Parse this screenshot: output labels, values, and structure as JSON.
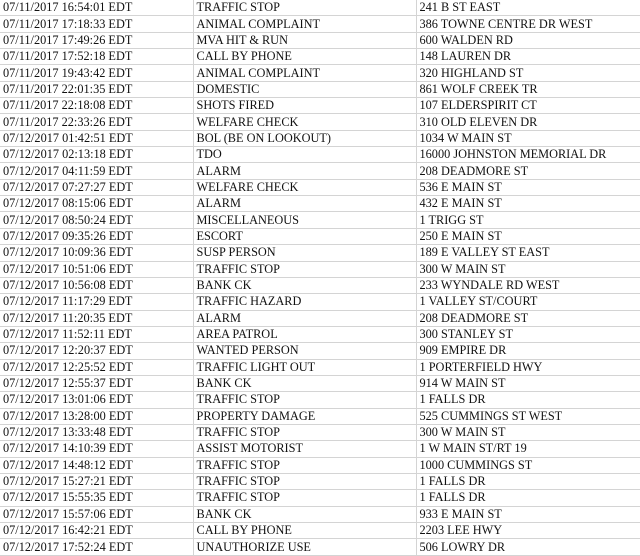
{
  "rows": [
    [
      "07/11/2017 16:54:01 EDT",
      "TRAFFIC STOP",
      "241 B ST EAST"
    ],
    [
      "07/11/2017 17:18:33 EDT",
      "ANIMAL COMPLAINT",
      "386 TOWNE CENTRE DR WEST"
    ],
    [
      "07/11/2017 17:49:26 EDT",
      "MVA HIT & RUN",
      "600 WALDEN RD"
    ],
    [
      "07/11/2017 17:52:18 EDT",
      "CALL BY PHONE",
      "148 LAUREN DR"
    ],
    [
      "07/11/2017 19:43:42 EDT",
      "ANIMAL COMPLAINT",
      "320 HIGHLAND ST"
    ],
    [
      "07/11/2017 22:01:35 EDT",
      "DOMESTIC",
      "861 WOLF CREEK TR"
    ],
    [
      "07/11/2017 22:18:08 EDT",
      "SHOTS FIRED",
      "107 ELDERSPIRIT CT"
    ],
    [
      "07/11/2017 22:33:26 EDT",
      "WELFARE CHECK",
      "310 OLD ELEVEN DR"
    ],
    [
      "07/12/2017 01:42:51 EDT",
      "BOL (BE ON LOOKOUT)",
      "1034 W MAIN ST"
    ],
    [
      "07/12/2017 02:13:18 EDT",
      "TDO",
      "16000 JOHNSTON MEMORIAL DR"
    ],
    [
      "07/12/2017 04:11:59 EDT",
      "ALARM",
      "208 DEADMORE ST"
    ],
    [
      "07/12/2017 07:27:27 EDT",
      "WELFARE CHECK",
      "536 E MAIN ST"
    ],
    [
      "07/12/2017 08:15:06 EDT",
      "ALARM",
      "432 E MAIN ST"
    ],
    [
      "07/12/2017 08:50:24 EDT",
      "MISCELLANEOUS",
      "1 TRIGG ST"
    ],
    [
      "07/12/2017 09:35:26 EDT",
      "ESCORT",
      "250 E MAIN ST"
    ],
    [
      "07/12/2017 10:09:36 EDT",
      "SUSP PERSON",
      "189 E VALLEY ST EAST"
    ],
    [
      "07/12/2017 10:51:06 EDT",
      "TRAFFIC STOP",
      "300 W MAIN ST"
    ],
    [
      "07/12/2017 10:56:08 EDT",
      "BANK CK",
      "233 WYNDALE RD WEST"
    ],
    [
      "07/12/2017 11:17:29 EDT",
      "TRAFFIC HAZARD",
      "1 VALLEY ST/COURT"
    ],
    [
      "07/12/2017 11:20:35 EDT",
      "ALARM",
      "208 DEADMORE ST"
    ],
    [
      "07/12/2017 11:52:11 EDT",
      "AREA PATROL",
      "300 STANLEY ST"
    ],
    [
      "07/12/2017 12:20:37 EDT",
      "WANTED PERSON",
      "909 EMPIRE DR"
    ],
    [
      "07/12/2017 12:25:52 EDT",
      "TRAFFIC LIGHT OUT",
      "1 PORTERFIELD HWY"
    ],
    [
      "07/12/2017 12:55:37 EDT",
      "BANK CK",
      "914 W MAIN ST"
    ],
    [
      "07/12/2017 13:01:06 EDT",
      "TRAFFIC STOP",
      "1 FALLS DR"
    ],
    [
      "07/12/2017 13:28:00 EDT",
      "PROPERTY DAMAGE",
      "525 CUMMINGS ST WEST"
    ],
    [
      "07/12/2017 13:33:48 EDT",
      "TRAFFIC STOP",
      "300 W MAIN ST"
    ],
    [
      "07/12/2017 14:10:39 EDT",
      "ASSIST MOTORIST",
      "1 W MAIN ST/RT 19"
    ],
    [
      "07/12/2017 14:48:12 EDT",
      "TRAFFIC STOP",
      "1000 CUMMINGS ST"
    ],
    [
      "07/12/2017 15:27:21 EDT",
      "TRAFFIC STOP",
      "1 FALLS DR"
    ],
    [
      "07/12/2017 15:55:35 EDT",
      "TRAFFIC STOP",
      "1 FALLS DR"
    ],
    [
      "07/12/2017 15:57:06 EDT",
      "BANK CK",
      "933 E MAIN ST"
    ],
    [
      "07/12/2017 16:42:21 EDT",
      "CALL BY PHONE",
      "2203 LEE HWY"
    ],
    [
      "07/12/2017 17:52:24 EDT",
      "UNAUTHORIZE USE",
      "506 LOWRY DR"
    ]
  ]
}
